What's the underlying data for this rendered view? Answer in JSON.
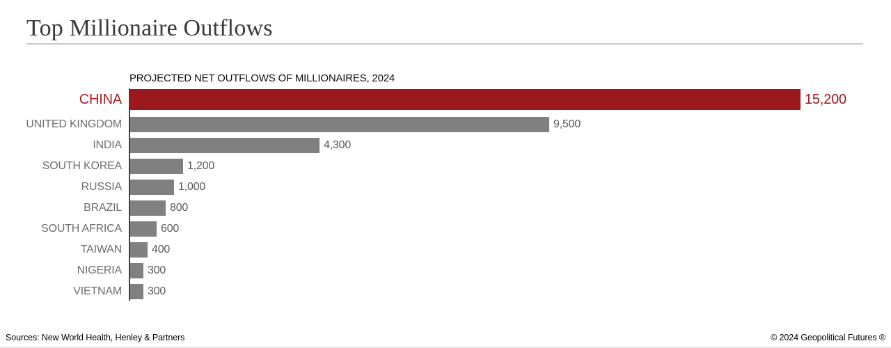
{
  "page": {
    "title": "Top Millionaire Outflows",
    "footer": {
      "sources": "Sources: New World Health, Henley & Partners",
      "copyright": "© 2024 Geopolitical Futures ®"
    }
  },
  "chart_data": {
    "type": "bar",
    "orientation": "horizontal",
    "title": "PROJECTED NET OUTFLOWS OF MILLIONAIRES, 2024",
    "categories": [
      "CHINA",
      "UNITED KINGDOM",
      "INDIA",
      "SOUTH KOREA",
      "RUSSIA",
      "BRAZIL",
      "SOUTH AFRICA",
      "TAIWAN",
      "NIGERIA",
      "VIETNAM"
    ],
    "values": [
      15200,
      9500,
      4300,
      1200,
      1000,
      800,
      600,
      400,
      300,
      300
    ],
    "value_labels": [
      "15,200",
      "9,500",
      "4,300",
      "1,200",
      "1,000",
      "800",
      "600",
      "400",
      "300",
      "300"
    ],
    "xlim": [
      0,
      15200
    ],
    "grid": false,
    "legend": false,
    "highlight_category": "CHINA",
    "colors": {
      "highlight_bar": "#9b191c",
      "highlight_label": "#b01e24",
      "highlight_value": "#9e1a1d",
      "bar": "#808080",
      "label_text": "#6d6e70",
      "value_text": "#58595b",
      "axis": "#414042"
    }
  }
}
